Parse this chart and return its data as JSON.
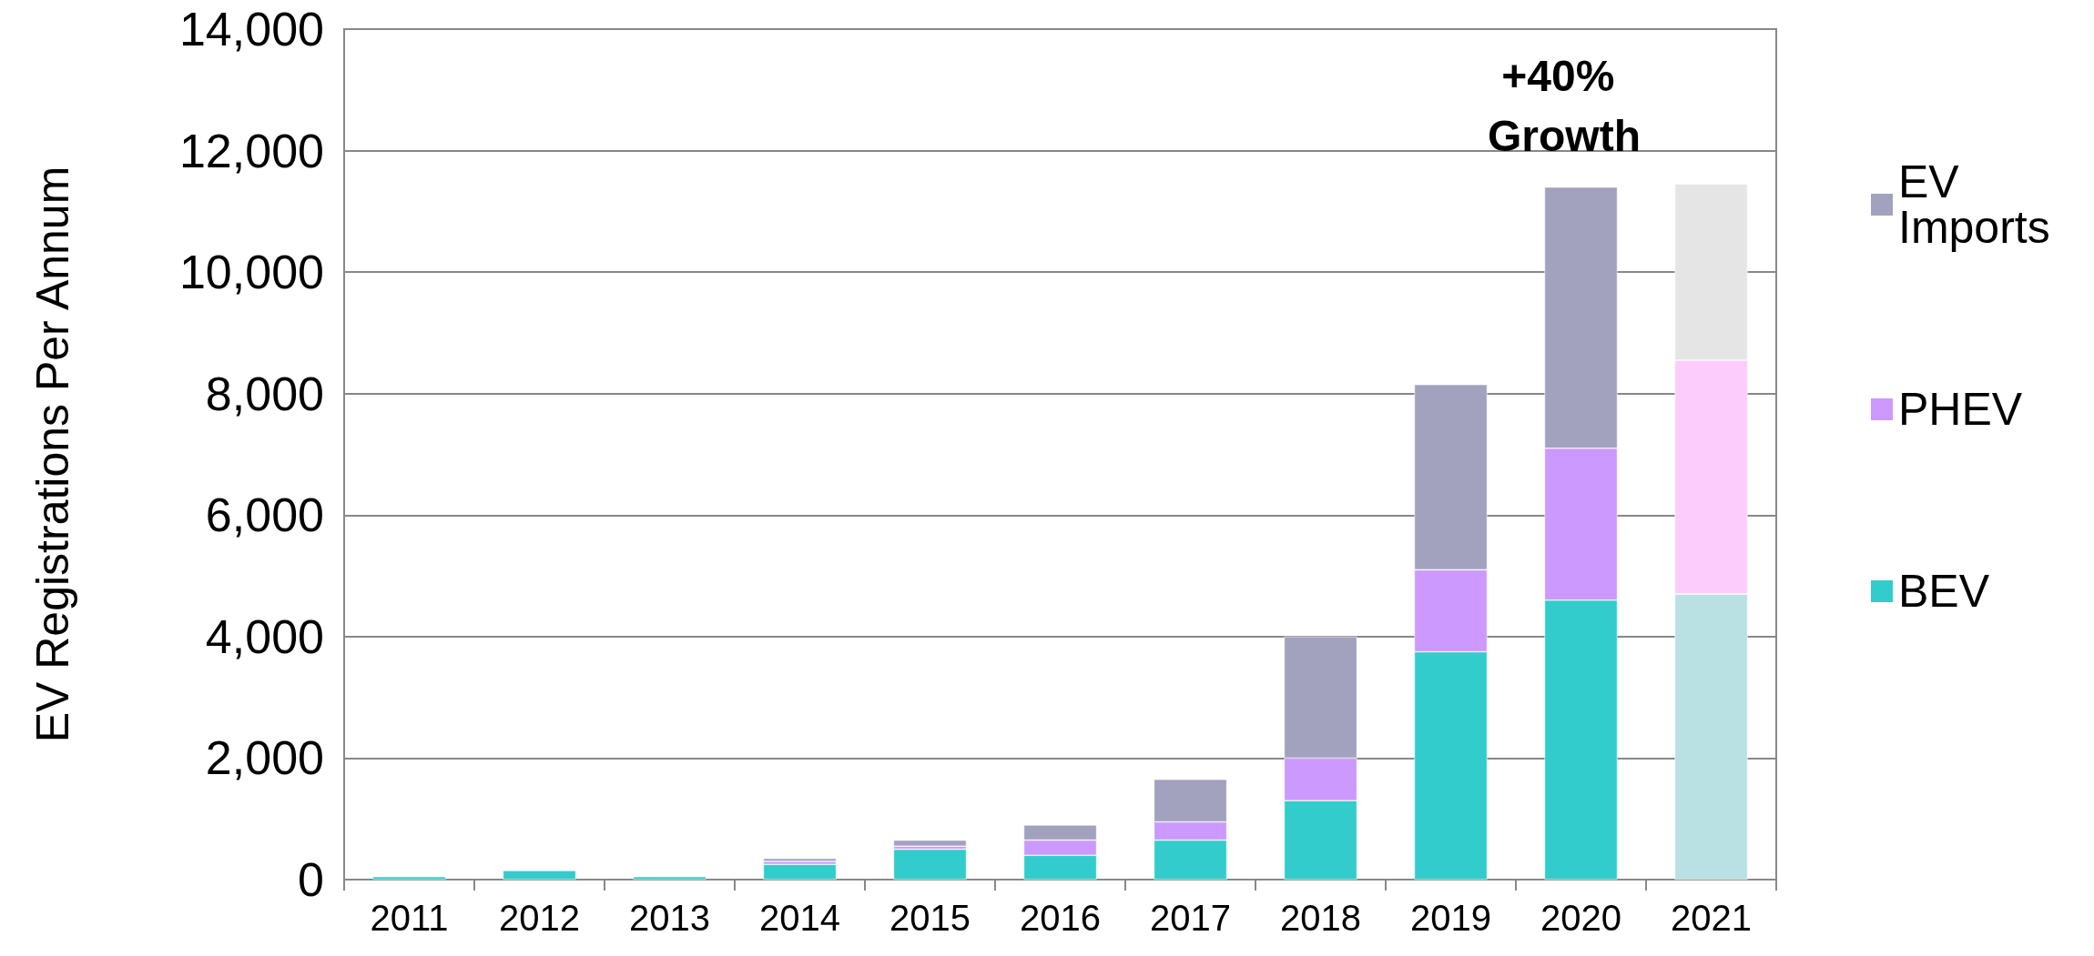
{
  "chart_data": {
    "type": "bar",
    "stacked": true,
    "ylabel": "EV Registrations Per Annum",
    "categories": [
      "2011",
      "2012",
      "2013",
      "2014",
      "2015",
      "2016",
      "2017",
      "2018",
      "2019",
      "2020",
      "2021"
    ],
    "ylim": [
      0,
      14000
    ],
    "yticks": [
      0,
      {
        "value": 2000,
        "label": "2,000"
      },
      {
        "value": 4000,
        "label": "4,000"
      },
      {
        "value": 6000,
        "label": "6,000"
      },
      {
        "value": 8000,
        "label": "8,000"
      },
      {
        "value": 10000,
        "label": "10,000"
      },
      {
        "value": 12000,
        "label": "12,000"
      },
      {
        "value": 14000,
        "label": "14,000"
      }
    ],
    "grid": "y",
    "legend": "right",
    "series": [
      {
        "name": "BEV",
        "color": "#33cccc",
        "colors": [
          "#33cccc",
          "#33cccc",
          "#33cccc",
          "#33cccc",
          "#33cccc",
          "#33cccc",
          "#33cccc",
          "#33cccc",
          "#33cccc",
          "#33cccc",
          "#b9e0e2"
        ],
        "values": [
          50,
          150,
          50,
          250,
          500,
          400,
          650,
          1300,
          3750,
          4600,
          4700
        ]
      },
      {
        "name": "PHEV",
        "color": "#cc99ff",
        "colors": [
          "#cc99ff",
          "#cc99ff",
          "#cc99ff",
          "#cc99ff",
          "#cc99ff",
          "#cc99ff",
          "#cc99ff",
          "#cc99ff",
          "#cc99ff",
          "#cc99ff",
          "#fccdfc"
        ],
        "values": [
          null,
          null,
          null,
          50,
          50,
          250,
          300,
          700,
          1350,
          2500,
          3850
        ]
      },
      {
        "name": "EV Imports",
        "color": "#a2a2bf",
        "colors": [
          "#a2a2bf",
          "#a2a2bf",
          "#a2a2bf",
          "#a2a2bf",
          "#a2a2bf",
          "#a2a2bf",
          "#a2a2bf",
          "#a2a2bf",
          "#a2a2bf",
          "#a2a2bf",
          "#e5e5e5"
        ],
        "values": [
          null,
          null,
          null,
          50,
          100,
          250,
          700,
          2000,
          3050,
          4300,
          2900
        ]
      }
    ],
    "annotations": [
      "+40% Growth"
    ]
  }
}
